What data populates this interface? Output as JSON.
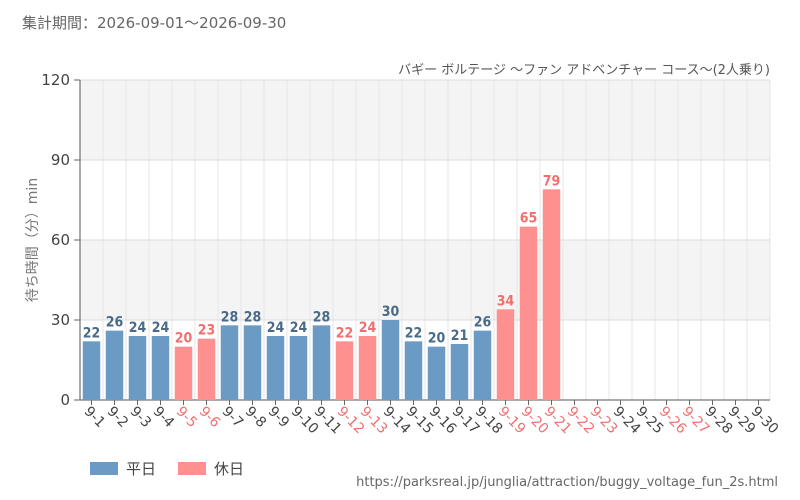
{
  "header": {
    "period_label": "集計期間：2026-09-01～2026-09-30"
  },
  "colors": {
    "weekday": "#6b9ac4",
    "holiday": "#ff9090",
    "weekday_label": "#4a6a8a",
    "holiday_label": "#f07070",
    "band": "#f4f4f4",
    "grid": "#dddddd"
  },
  "chart_data": {
    "type": "bar",
    "title": "バギー ボルテージ ～ファン アドベンチャー コース～(2人乗り)",
    "ylabel": "待ち時間（分）min",
    "xlabel": "",
    "ylim": [
      0,
      120
    ],
    "yticks": [
      0,
      30,
      60,
      90,
      120
    ],
    "grid": true,
    "legend_position": "bottom-left",
    "categories": [
      "9-1",
      "9-2",
      "9-3",
      "9-4",
      "9-5",
      "9-6",
      "9-7",
      "9-8",
      "9-9",
      "9-10",
      "9-11",
      "9-12",
      "9-13",
      "9-14",
      "9-15",
      "9-16",
      "9-17",
      "9-18",
      "9-19",
      "9-20",
      "9-21",
      "9-22",
      "9-23",
      "9-24",
      "9-25",
      "9-26",
      "9-27",
      "9-28",
      "9-29",
      "9-30"
    ],
    "day_type": [
      "weekday",
      "weekday",
      "weekday",
      "weekday",
      "holiday",
      "holiday",
      "weekday",
      "weekday",
      "weekday",
      "weekday",
      "weekday",
      "holiday",
      "holiday",
      "weekday",
      "weekday",
      "weekday",
      "weekday",
      "weekday",
      "holiday",
      "holiday",
      "holiday",
      "holiday",
      "holiday",
      "weekday",
      "weekday",
      "holiday",
      "holiday",
      "weekday",
      "weekday",
      "weekday"
    ],
    "values": [
      22,
      26,
      24,
      24,
      20,
      23,
      28,
      28,
      24,
      24,
      28,
      22,
      24,
      30,
      22,
      20,
      21,
      26,
      34,
      65,
      79,
      null,
      null,
      null,
      null,
      null,
      null,
      null,
      null,
      null
    ],
    "legend": [
      {
        "key": "weekday",
        "label": "平日"
      },
      {
        "key": "holiday",
        "label": "休日"
      }
    ]
  },
  "footer": {
    "source": "https://parksreal.jp/junglia/attraction/buggy_voltage_fun_2s.html"
  }
}
